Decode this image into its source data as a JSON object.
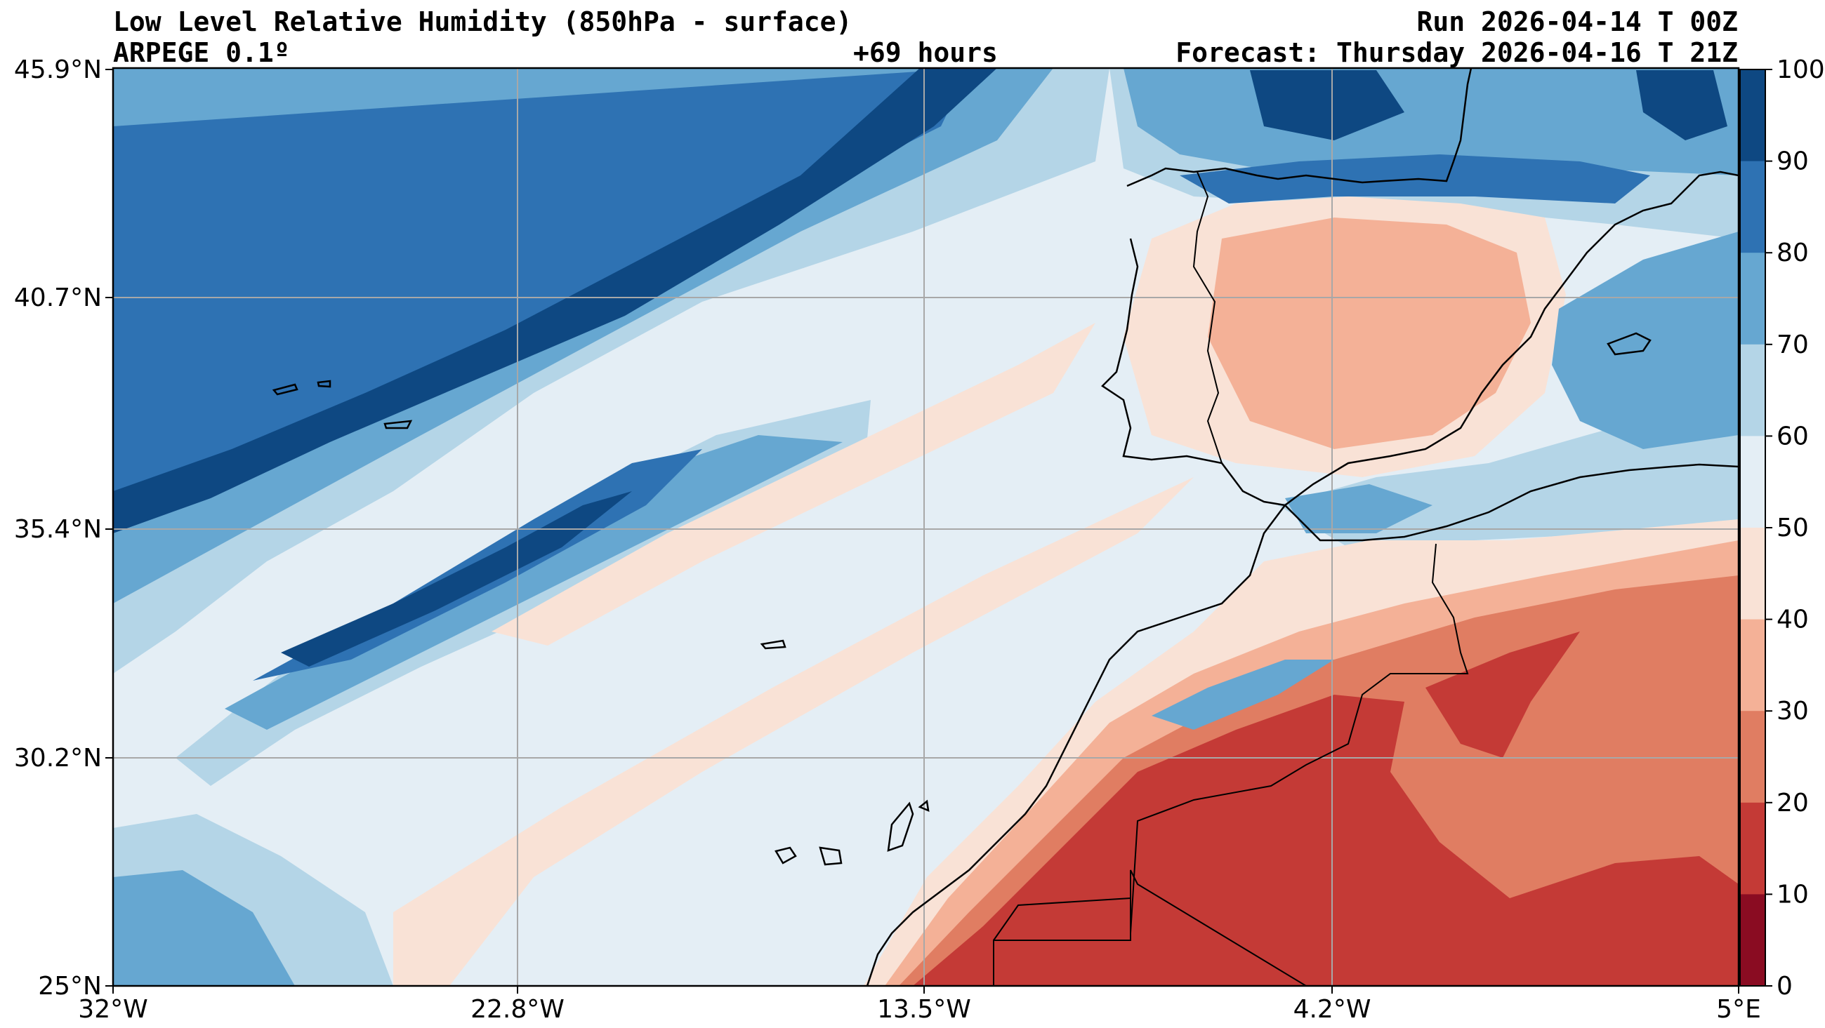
{
  "header": {
    "title": "Low Level Relative Humidity (850hPa - surface)",
    "model": "ARPEGE 0.1º",
    "lead_time": "+69 hours",
    "run": "Run 2026-04-14 T 00Z",
    "forecast": "Forecast: Thursday 2026-04-16 T 21Z"
  },
  "axes": {
    "lat_labels": [
      "45.9°N",
      "40.7°N",
      "35.4°N",
      "30.2°N",
      "25°N"
    ],
    "lon_labels": [
      "32°W",
      "22.8°W",
      "13.5°W",
      "4.2°W",
      "5°E"
    ]
  },
  "colorbar": {
    "ticks": [
      "100",
      "90",
      "80",
      "70",
      "60",
      "50",
      "40",
      "30",
      "20",
      "10",
      "0"
    ],
    "colors": [
      "#0e4882",
      "#2e72b3",
      "#66a7d1",
      "#b4d5e7",
      "#e4eef5",
      "#f9e2d6",
      "#f4b197",
      "#e07d62",
      "#c43a36",
      "#8a0c22"
    ]
  },
  "map": {
    "background_color": "#e4eef5",
    "grid_color": "#a8a8a8"
  }
}
